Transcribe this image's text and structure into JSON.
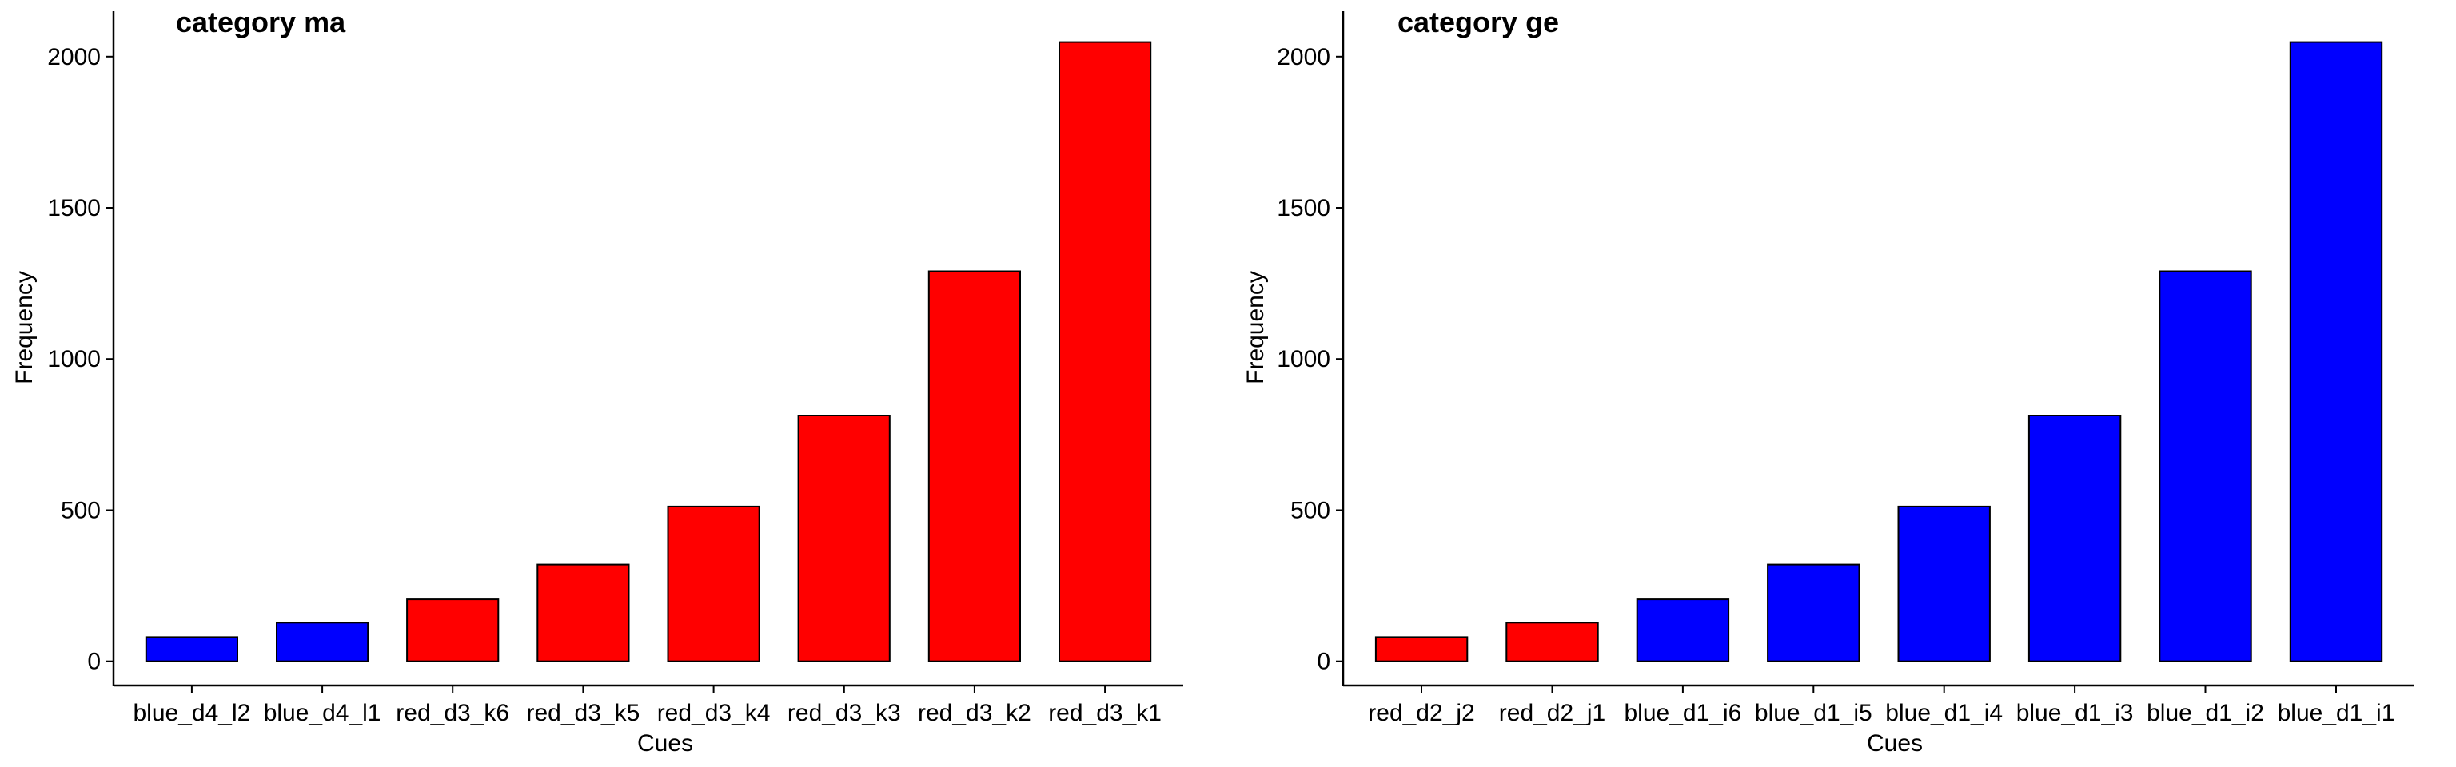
{
  "chart_data": [
    {
      "type": "bar",
      "title": "category ma",
      "xlabel": "Cues",
      "ylabel": "Frequency",
      "categories": [
        "blue_d4_l2",
        "blue_d4_l1",
        "red_d3_k6",
        "red_d3_k5",
        "red_d3_k4",
        "red_d3_k3",
        "red_d3_k2",
        "red_d3_k1"
      ],
      "values": [
        80,
        128,
        205,
        320,
        512,
        813,
        1290,
        2048
      ],
      "bar_colors": [
        "#0000FF",
        "#0000FF",
        "#FF0000",
        "#FF0000",
        "#FF0000",
        "#FF0000",
        "#FF0000",
        "#FF0000"
      ],
      "yticks": [
        0,
        500,
        1000,
        1500,
        2000
      ],
      "ylim": [
        -80,
        2150
      ],
      "grid": false
    },
    {
      "type": "bar",
      "title": "category ge",
      "xlabel": "Cues",
      "ylabel": "Frequency",
      "categories": [
        "red_d2_j2",
        "red_d2_j1",
        "blue_d1_i6",
        "blue_d1_i5",
        "blue_d1_i4",
        "blue_d1_i3",
        "blue_d1_i2",
        "blue_d1_i1"
      ],
      "values": [
        80,
        128,
        205,
        320,
        512,
        813,
        1290,
        2048
      ],
      "bar_colors": [
        "#FF0000",
        "#FF0000",
        "#0000FF",
        "#0000FF",
        "#0000FF",
        "#0000FF",
        "#0000FF",
        "#0000FF"
      ],
      "yticks": [
        0,
        500,
        1000,
        1500,
        2000
      ],
      "ylim": [
        -80,
        2150
      ],
      "grid": false
    }
  ]
}
